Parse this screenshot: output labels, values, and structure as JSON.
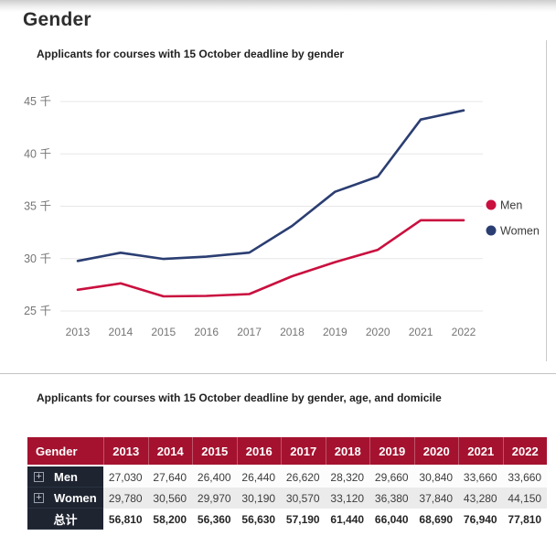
{
  "page": {
    "title": "Gender"
  },
  "colors": {
    "men": "#c9103f",
    "women": "#2b3e72",
    "table_header_bg": "#a4122f",
    "row_header_bg": "#1e2430",
    "row_alt_bg": "#ebebeb",
    "gridline": "#e7e7e7",
    "axis_text": "#757575"
  },
  "chart": {
    "subtitle": "Applicants for courses with 15 October deadline by gender"
  },
  "chart_data": {
    "type": "line",
    "title": "Applicants for courses with 15 October deadline by gender",
    "x": [
      "2013",
      "2014",
      "2015",
      "2016",
      "2017",
      "2018",
      "2019",
      "2020",
      "2021",
      "2022"
    ],
    "series": [
      {
        "name": "Men",
        "color": "#c9103f",
        "values": [
          27030,
          27640,
          26400,
          26440,
          26620,
          28320,
          29660,
          30840,
          33660,
          33660
        ]
      },
      {
        "name": "Women",
        "color": "#2b3e72",
        "values": [
          29780,
          30560,
          29970,
          30190,
          30570,
          33120,
          36380,
          37840,
          43280,
          44150
        ]
      }
    ],
    "xlabel": "",
    "ylabel": "",
    "ylim": [
      25000,
      45000
    ],
    "yticks": [
      {
        "value": 25000,
        "label": "25 千"
      },
      {
        "value": 30000,
        "label": "30 千"
      },
      {
        "value": 35000,
        "label": "35 千"
      },
      {
        "value": 40000,
        "label": "40 千"
      },
      {
        "value": 45000,
        "label": "45 千"
      }
    ],
    "grid": true,
    "legend_position": "right"
  },
  "table": {
    "subtitle": "Applicants for courses with 15 October deadline by gender, age, and domicile",
    "header": [
      "Gender",
      "2013",
      "2014",
      "2015",
      "2016",
      "2017",
      "2018",
      "2019",
      "2020",
      "2021",
      "2022"
    ],
    "rows": [
      {
        "label": "Men",
        "expandable": true,
        "total": false,
        "values": [
          "27,030",
          "27,640",
          "26,400",
          "26,440",
          "26,620",
          "28,320",
          "29,660",
          "30,840",
          "33,660",
          "33,660"
        ]
      },
      {
        "label": "Women",
        "expandable": true,
        "total": false,
        "values": [
          "29,780",
          "30,560",
          "29,970",
          "30,190",
          "30,570",
          "33,120",
          "36,380",
          "37,840",
          "43,280",
          "44,150"
        ]
      },
      {
        "label": "总计",
        "expandable": false,
        "total": true,
        "values": [
          "56,810",
          "58,200",
          "56,360",
          "56,630",
          "57,190",
          "61,440",
          "66,040",
          "68,690",
          "76,940",
          "77,810"
        ]
      }
    ]
  }
}
